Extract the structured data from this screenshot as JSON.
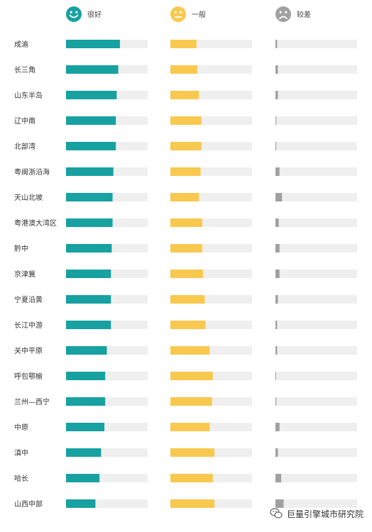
{
  "chart_data": {
    "type": "bar",
    "series": [
      {
        "name": "很好",
        "color": "#17a1a1",
        "icon": "happy-face-icon",
        "values": [
          66,
          64,
          62,
          61,
          61,
          58,
          57,
          57,
          56,
          55,
          55,
          55,
          50,
          48,
          48,
          47,
          43,
          41,
          36
        ]
      },
      {
        "name": "一般",
        "color": "#f9c84e",
        "icon": "neutral-face-icon",
        "values": [
          32,
          33,
          35,
          38,
          38,
          37,
          35,
          39,
          39,
          40,
          42,
          43,
          48,
          52,
          51,
          48,
          54,
          52,
          54
        ]
      },
      {
        "name": "较差",
        "color": "#a0a0a0",
        "icon": "sad-face-icon",
        "values": [
          2,
          3,
          3,
          1,
          1,
          5,
          8,
          4,
          5,
          5,
          3,
          2,
          2,
          0.5,
          1,
          5,
          3,
          7,
          10
        ]
      }
    ],
    "categories": [
      "成渝",
      "长三角",
      "山东半岛",
      "辽中南",
      "北部湾",
      "粤闽浙沿海",
      "天山北坡",
      "粤港澳大湾区",
      "黔中",
      "京津冀",
      "宁夏沿黄",
      "长江中游",
      "关中平原",
      "呼包鄂榆",
      "兰州—西宁",
      "中原",
      "滇中",
      "哈长",
      "山西中部"
    ],
    "track_color": "#efefef",
    "xlim": [
      0,
      100
    ],
    "grid": false,
    "legend_position": "top"
  },
  "watermark": {
    "text": "巨量引擎城市研究院",
    "icon": "wechat-icon"
  }
}
